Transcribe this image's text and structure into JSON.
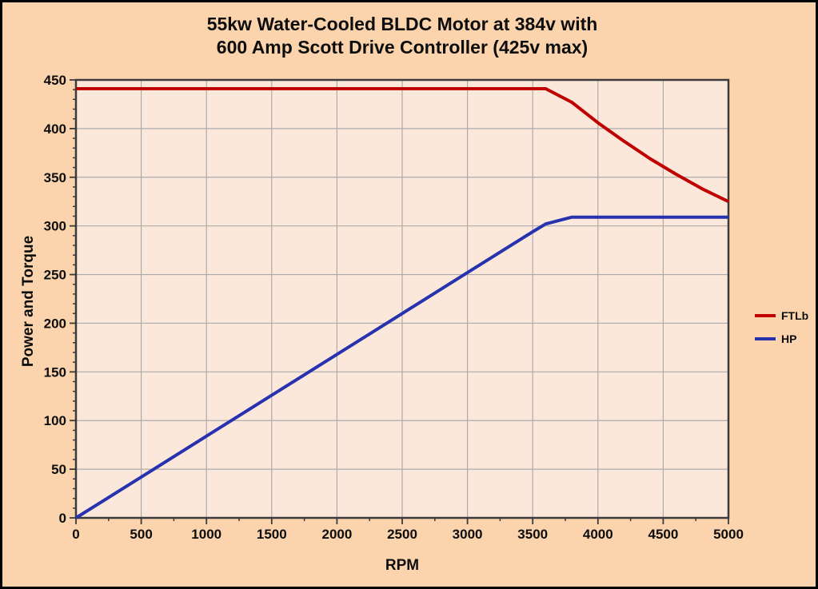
{
  "title": {
    "line1": "55kw Water-Cooled BLDC Motor at 384v with",
    "line2": "600 Amp Scott Drive Controller (425v max)"
  },
  "colors": {
    "outer_background": "#FBD4AE",
    "plot_background": "#FCE8DB",
    "gridline": "#ABABAB",
    "axis_border": "#3B3B3B",
    "text": "#0d0d0d",
    "ftlb_line": "#C00000",
    "hp_line": "#2733AE"
  },
  "chart_data": {
    "type": "line",
    "title": "55kw Water-Cooled BLDC Motor at 384v with 600 Amp Scott Drive Controller (425v max)",
    "xlabel": "RPM",
    "ylabel": "Power  and Torque",
    "xlim": [
      0,
      5000
    ],
    "ylim": [
      0,
      450
    ],
    "x_ticks": [
      0,
      500,
      1000,
      1500,
      2000,
      2500,
      3000,
      3500,
      4000,
      4500,
      5000
    ],
    "y_ticks": [
      0,
      50,
      100,
      150,
      200,
      250,
      300,
      350,
      400,
      450
    ],
    "x_minor_step": 250,
    "y_minor_step": 10,
    "grid": true,
    "legend_position": "right-outside",
    "series": [
      {
        "name": "FTLb",
        "color": "#C00000",
        "points": [
          [
            0,
            441
          ],
          [
            500,
            441
          ],
          [
            1000,
            441
          ],
          [
            1500,
            441
          ],
          [
            2000,
            441
          ],
          [
            2500,
            441
          ],
          [
            3000,
            441
          ],
          [
            3500,
            441
          ],
          [
            3600,
            441
          ],
          [
            3800,
            427
          ],
          [
            4000,
            406
          ],
          [
            4200,
            387
          ],
          [
            4400,
            369
          ],
          [
            4600,
            353
          ],
          [
            4800,
            338
          ],
          [
            5000,
            325
          ]
        ]
      },
      {
        "name": "HP",
        "color": "#2733AE",
        "points": [
          [
            0,
            0
          ],
          [
            500,
            42
          ],
          [
            1000,
            84
          ],
          [
            1500,
            126
          ],
          [
            2000,
            168
          ],
          [
            2500,
            210
          ],
          [
            3000,
            252
          ],
          [
            3500,
            294
          ],
          [
            3600,
            302
          ],
          [
            3800,
            309
          ],
          [
            4000,
            309
          ],
          [
            4500,
            309
          ],
          [
            5000,
            309
          ]
        ]
      }
    ]
  }
}
